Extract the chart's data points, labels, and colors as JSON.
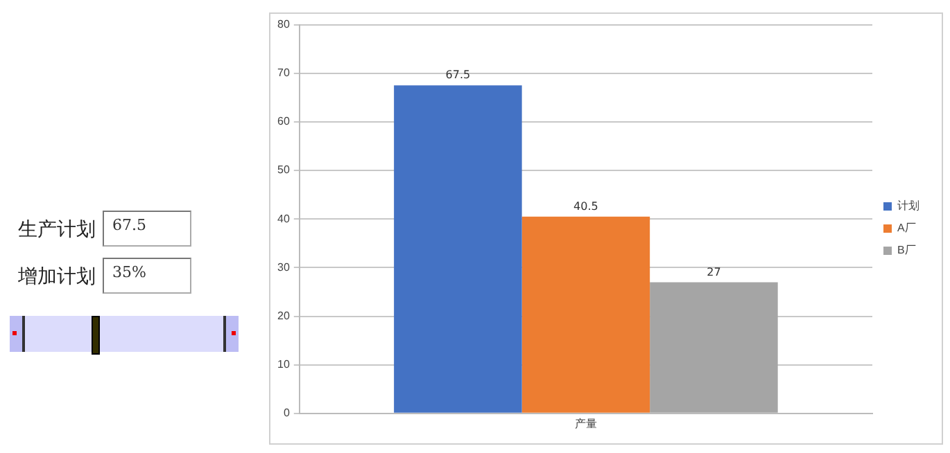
{
  "chart_data": {
    "type": "bar",
    "categories": [
      "产量"
    ],
    "series": [
      {
        "name": "计划",
        "color": "#4472c4",
        "values": [
          67.5
        ]
      },
      {
        "name": "A厂",
        "color": "#ed7d31",
        "values": [
          40.5
        ]
      },
      {
        "name": "B厂",
        "color": "#a5a5a5",
        "values": [
          27
        ]
      }
    ],
    "ylim": [
      0,
      80
    ],
    "yticks": [
      0,
      10,
      20,
      30,
      40,
      50,
      60,
      70,
      80
    ],
    "grid": "y",
    "legend": "right",
    "data_labels": true,
    "annotations": [
      "生产计划",
      "67.5",
      "增加计划",
      "35%"
    ]
  }
}
